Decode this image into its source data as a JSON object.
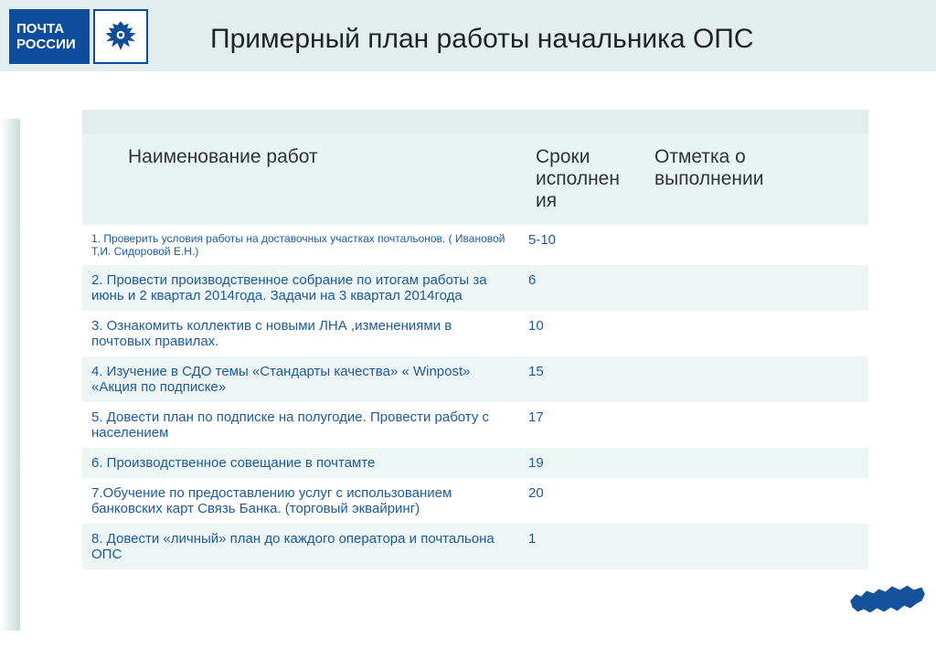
{
  "logo": {
    "line1": "ПОЧТА",
    "line2": "РОССИИ"
  },
  "title": "Примерный план работы начальника ОПС",
  "columns": {
    "name": "Наименование работ",
    "deadline": "Сроки исполнен ия",
    "mark": "Отметка о выполнении"
  },
  "rows": [
    {
      "name": "1. Проверить условия работы на доставочных  участках почтальонов. ( Ивановой  Т,И. Сидоровой Е.Н.)",
      "deadline": "5-10",
      "mark": "",
      "small": true
    },
    {
      "name": "2. Провести производственное  собрание по итогам работы за июнь и 2 квартал 2014года. Задачи на 3 квартал 2014года",
      "deadline": "6",
      "mark": ""
    },
    {
      "name": "3. Ознакомить коллектив с новыми ЛНА ,изменениями в почтовых правилах.",
      "deadline": "10",
      "mark": ""
    },
    {
      "name": "4. Изучение в СДО темы  «Стандарты качества»  « Winpost»  «Акция по подписке»",
      "deadline": "15",
      "mark": ""
    },
    {
      "name": "5. Довести план по подписке на полугодие. Провести работу  с населением",
      "deadline": "17",
      "mark": ""
    },
    {
      "name": "6. Производственное совещание в почтамте",
      "deadline": "19",
      "mark": ""
    },
    {
      "name": "7.Обучение по  предоставлению услуг   с использованием банковских карт Связь Банка. (торговый   эквайринг)",
      "deadline": "20",
      "mark": ""
    },
    {
      "name": "8. Довести «личный»  план  до каждого оператора и почтальона ОПС",
      "deadline": "1",
      "mark": ""
    }
  ],
  "colors": {
    "header_bg": "#e2eeee",
    "row_alt_bg": "#edf5f5",
    "text_blue": "#1b5ba0",
    "logo_bg": "#0e4c9c"
  }
}
